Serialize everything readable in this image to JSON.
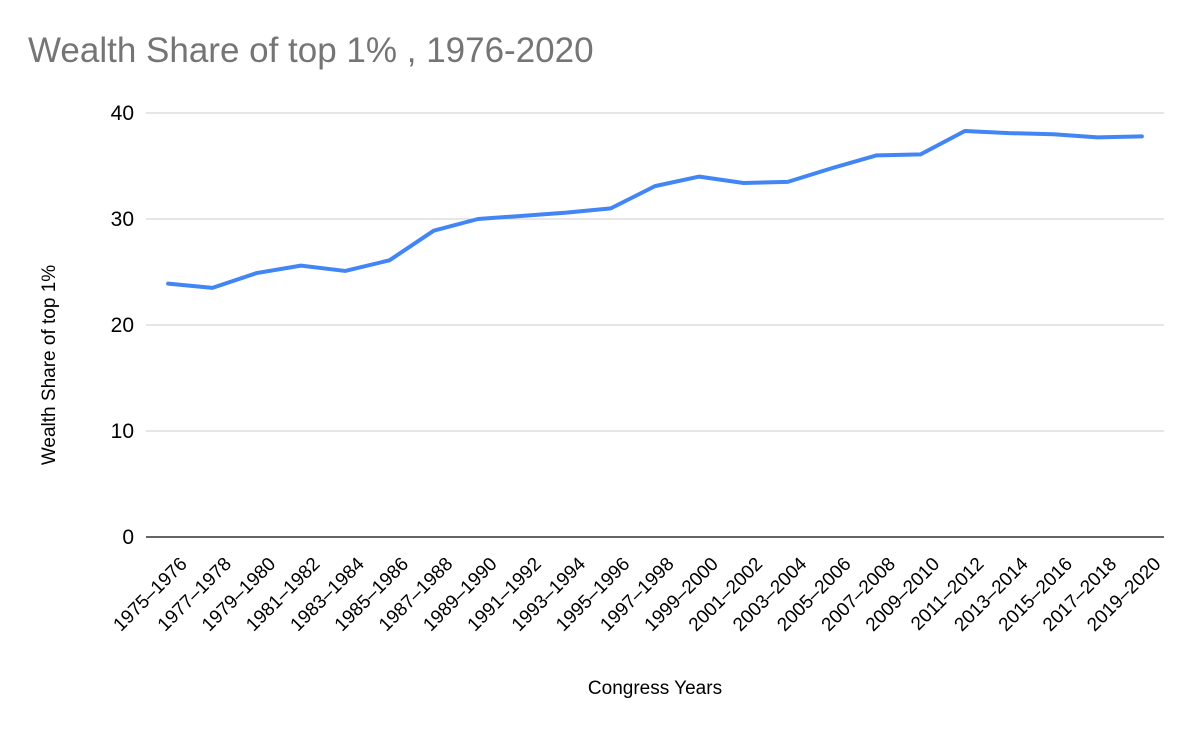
{
  "colors": {
    "line": "#4285f4",
    "grid": "#cccccc",
    "axis": "#333333",
    "title_text": "#757575",
    "label_text": "#000000"
  },
  "chart_data": {
    "type": "line",
    "title": "Wealth Share of top 1% , 1976-2020",
    "xlabel": "Congress Years",
    "ylabel": "Wealth Share of top 1%",
    "ylim": [
      0,
      40
    ],
    "yticks": [
      0,
      10,
      20,
      30,
      40
    ],
    "grid": true,
    "legend": false,
    "categories": [
      "1975–1976",
      "1977–1978",
      "1979–1980",
      "1981–1982",
      "1983–1984",
      "1985–1986",
      "1987–1988",
      "1989–1990",
      "1991–1992",
      "1993–1994",
      "1995–1996",
      "1997–1998",
      "1999–2000",
      "2001–2002",
      "2003–2004",
      "2005–2006",
      "2007–2008",
      "2009–2010",
      "2011–2012",
      "2013–2014",
      "2015–2016",
      "2017–2018",
      "2019–2020"
    ],
    "series": [
      {
        "name": "Wealth Share of top 1%",
        "values": [
          23.9,
          23.5,
          24.9,
          25.6,
          25.1,
          26.1,
          28.9,
          30.0,
          30.3,
          30.6,
          31.0,
          33.1,
          34.0,
          33.4,
          33.5,
          34.8,
          36.0,
          36.1,
          38.3,
          38.1,
          38.0,
          37.7,
          37.8
        ]
      }
    ]
  }
}
